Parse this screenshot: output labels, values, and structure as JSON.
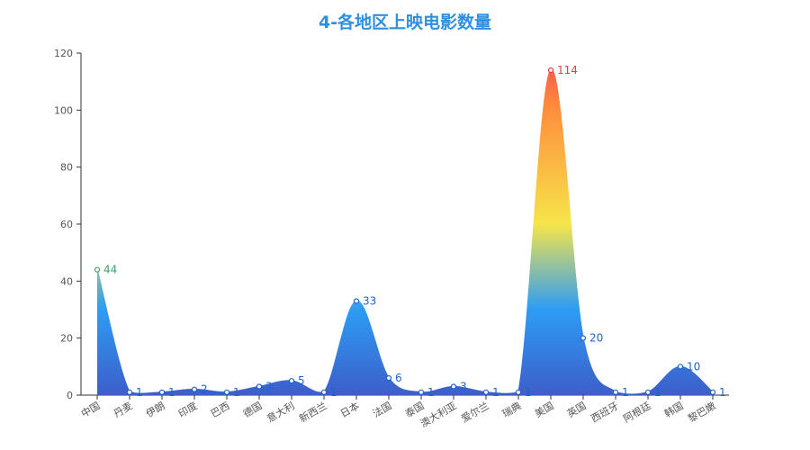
{
  "chart_data": {
    "type": "area",
    "title": "4-各地区上映电影数量",
    "categories": [
      "中国",
      "丹麦",
      "伊朗",
      "印度",
      "巴西",
      "德国",
      "意大利",
      "新西兰",
      "日本",
      "法国",
      "泰国",
      "澳大利亚",
      "爱尔兰",
      "瑞典",
      "美国",
      "英国",
      "西班牙",
      "阿根廷",
      "韩国",
      "黎巴嫩"
    ],
    "values": [
      44,
      1,
      1,
      2,
      1,
      3,
      5,
      1,
      33,
      6,
      1,
      3,
      1,
      1,
      114,
      20,
      1,
      1,
      10,
      1
    ],
    "ylim": [
      0,
      120
    ],
    "yticks": [
      0,
      20,
      40,
      60,
      80,
      100,
      120
    ],
    "xlabel": "",
    "ylabel": "",
    "grid": false,
    "smooth": true,
    "colors": {
      "title": "#2f8fe0",
      "axis": "#333333",
      "gradient_top": "#ef4b4b",
      "gradient_orange": "#ff8a3d",
      "gradient_yellow": "#f6e54a",
      "gradient_blue": "#2d9cf5",
      "gradient_bottom": "#3d5ec9",
      "label_low": "#1f63c9",
      "label_mid": "#3fa06a",
      "label_high": "#e04040"
    }
  }
}
